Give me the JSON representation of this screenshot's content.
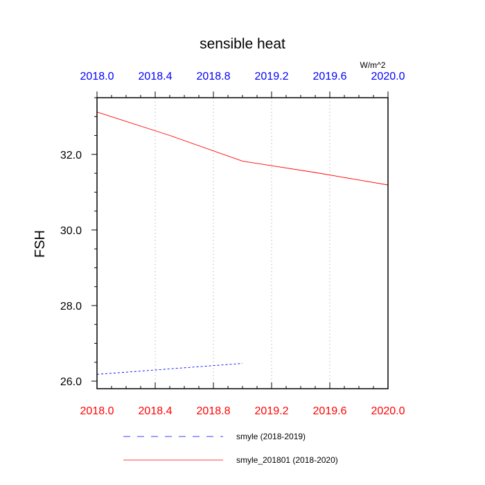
{
  "chart_data": {
    "type": "line",
    "title": "sensible heat",
    "units": "W/m^2",
    "ylabel": "FSH",
    "xlabel": "",
    "xlim": [
      2018.0,
      2020.0
    ],
    "ylim": [
      25.8,
      33.5
    ],
    "x_ticks": [
      "2018.0",
      "2018.4",
      "2018.8",
      "2019.2",
      "2019.6",
      "2020.0"
    ],
    "y_ticks": [
      "26.0",
      "28.0",
      "30.0",
      "32.0"
    ],
    "grid": "vertical dotted",
    "legend_position": "bottom",
    "colors": {
      "top_axis": "#0000ff",
      "bottom_axis": "#ff0000"
    },
    "series": [
      {
        "name": "smyle (2018-2019)",
        "color": "#0000ff",
        "dash": "dashed",
        "x": [
          2018.0,
          2019.0
        ],
        "y": [
          26.18,
          26.47
        ]
      },
      {
        "name": "smyle_201801 (2018-2020)",
        "color": "#ff0000",
        "dash": "solid",
        "x": [
          2018.0,
          2018.5,
          2019.0,
          2019.5,
          2020.0
        ],
        "y": [
          33.12,
          32.5,
          31.82,
          31.52,
          31.19
        ]
      }
    ]
  }
}
